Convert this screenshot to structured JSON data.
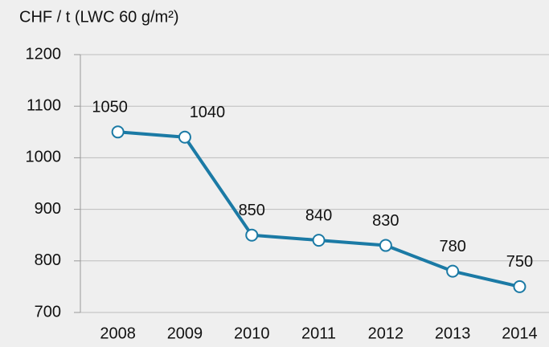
{
  "chart_data": {
    "type": "line",
    "title": "CHF / t (LWC 60 g/m²)",
    "categories": [
      "2008",
      "2009",
      "2010",
      "2011",
      "2012",
      "2013",
      "2014"
    ],
    "values": [
      1050,
      1040,
      850,
      840,
      830,
      780,
      750
    ],
    "color": "#1b7aa5",
    "ylim": [
      700,
      1200
    ],
    "yticks": [
      700,
      800,
      900,
      1000,
      1100,
      1200
    ],
    "grid": true
  }
}
